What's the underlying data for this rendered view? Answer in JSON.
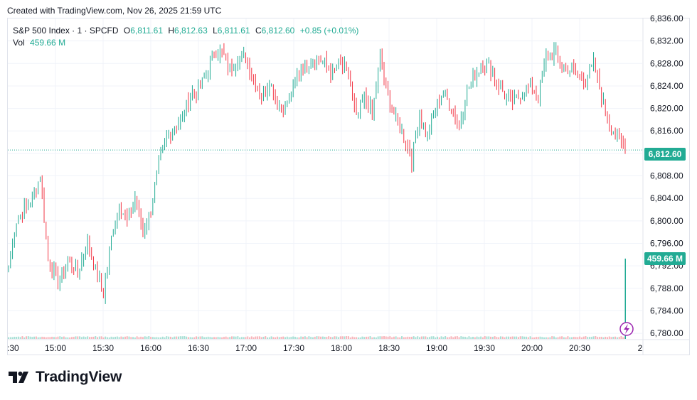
{
  "caption": "Created with TradingView.com, Nov 26, 2025 21:59 UTC",
  "legend": {
    "symbol": "S&P 500 Index · 1 · SPCFD",
    "o_label": "O",
    "o_value": "6,811.61",
    "h_label": "H",
    "h_value": "6,812.63",
    "l_label": "L",
    "l_value": "6,811.61",
    "c_label": "C",
    "c_value": "6,812.60",
    "change": "+0.85 (+0.01%)",
    "vol_label": "Vol",
    "vol_value": "459.66 M"
  },
  "price_badge": "6,812.60",
  "volume_badge": "459.66 M",
  "brand": {
    "name": "TradingView",
    "icon": "tradingview-logo-icon"
  },
  "alert_icon": "lightning-icon",
  "colors": {
    "up": "#22ab94",
    "down": "#f23645",
    "grid": "#f0f3fa",
    "badge": "#22ab94"
  },
  "chart_data": {
    "type": "candlestick",
    "x_ticks": [
      ":30",
      "15:00",
      "15:30",
      "16:00",
      "16:30",
      "17:00",
      "17:30",
      "18:00",
      "18:30",
      "19:00",
      "19:30",
      "20:00",
      "20:30",
      "2"
    ],
    "y_ticks": [
      "6,836.00",
      "6,832.00",
      "6,828.00",
      "6,824.00",
      "6,820.00",
      "6,816.00",
      "6,812.00",
      "6,808.00",
      "6,804.00",
      "6,800.00",
      "6,796.00",
      "6,792.00",
      "6,788.00",
      "6,784.00",
      "6,780.00"
    ],
    "y_tick_values": [
      6836,
      6832,
      6828,
      6824,
      6820,
      6816,
      6812,
      6808,
      6804,
      6800,
      6796,
      6792,
      6788,
      6784,
      6780
    ],
    "ylim": [
      6779,
      6836
    ],
    "last_price": 6812.6,
    "last_volume": "459.66 M",
    "close_anchors": [
      [
        0,
        6792
      ],
      [
        4,
        6800
      ],
      [
        10,
        6803
      ],
      [
        14,
        6806
      ],
      [
        16,
        6808
      ],
      [
        20,
        6793
      ],
      [
        25,
        6789
      ],
      [
        30,
        6793
      ],
      [
        35,
        6791
      ],
      [
        40,
        6796
      ],
      [
        44,
        6791
      ],
      [
        48,
        6787
      ],
      [
        52,
        6797
      ],
      [
        56,
        6803
      ],
      [
        60,
        6800
      ],
      [
        64,
        6804
      ],
      [
        68,
        6798
      ],
      [
        72,
        6802
      ],
      [
        76,
        6810
      ],
      [
        80,
        6815
      ],
      [
        84,
        6817
      ],
      [
        88,
        6818
      ],
      [
        92,
        6823
      ],
      [
        96,
        6823
      ],
      [
        100,
        6826
      ],
      [
        104,
        6830
      ],
      [
        108,
        6830
      ],
      [
        112,
        6827
      ],
      [
        116,
        6829
      ],
      [
        120,
        6829
      ],
      [
        124,
        6825
      ],
      [
        128,
        6822
      ],
      [
        132,
        6825
      ],
      [
        136,
        6821
      ],
      [
        140,
        6820
      ],
      [
        144,
        6824
      ],
      [
        148,
        6827
      ],
      [
        152,
        6828
      ],
      [
        156,
        6829
      ],
      [
        160,
        6828
      ],
      [
        164,
        6826
      ],
      [
        168,
        6828
      ],
      [
        172,
        6826
      ],
      [
        176,
        6818
      ],
      [
        180,
        6822
      ],
      [
        184,
        6819
      ],
      [
        188,
        6829
      ],
      [
        192,
        6822
      ],
      [
        196,
        6818
      ],
      [
        200,
        6815
      ],
      [
        204,
        6811
      ],
      [
        208,
        6819
      ],
      [
        212,
        6815
      ],
      [
        216,
        6820
      ],
      [
        220,
        6823
      ],
      [
        224,
        6820
      ],
      [
        228,
        6817
      ],
      [
        232,
        6823
      ],
      [
        236,
        6826
      ],
      [
        240,
        6828
      ],
      [
        244,
        6827
      ],
      [
        248,
        6824
      ],
      [
        252,
        6822
      ],
      [
        256,
        6821
      ],
      [
        260,
        6823
      ],
      [
        264,
        6824
      ],
      [
        268,
        6822
      ],
      [
        272,
        6829
      ],
      [
        276,
        6830
      ],
      [
        280,
        6828
      ],
      [
        284,
        6827
      ],
      [
        288,
        6826
      ],
      [
        292,
        6825
      ],
      [
        296,
        6828
      ],
      [
        300,
        6822
      ],
      [
        304,
        6817
      ],
      [
        308,
        6815
      ],
      [
        312,
        6812.6
      ]
    ],
    "candle_count": 313
  }
}
